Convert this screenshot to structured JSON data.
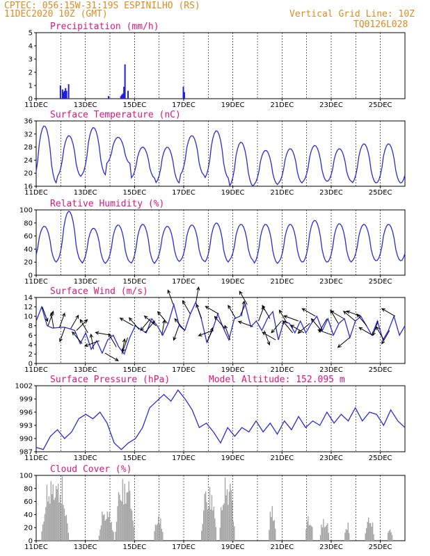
{
  "header": {
    "line1": "CPTEC:  056:15W-31:19S  ESPINILHO (RS)",
    "line2": "11DEC2020 10Z (GMT)",
    "grid_note": "Vertical Grid Line: 10Z",
    "code": "TQ0126L028"
  },
  "day_labels": [
    "11DEC",
    "13DEC",
    "15DEC",
    "17DEC",
    "19DEC",
    "21DEC",
    "23DEC",
    "25DEC"
  ],
  "colors": {
    "header": "#e08a1e",
    "title": "#e0147a",
    "series": "#2929e0",
    "precip": "#1f1fd8",
    "cloud": "#a6a6a6"
  },
  "chart_data": [
    {
      "type": "bar",
      "title": "Precipitation (mm/h)",
      "x_unit": "hours from 11DEC2020 10Z",
      "ylim": [
        0,
        5
      ],
      "yticks": [
        0,
        1,
        2,
        3,
        4,
        5
      ],
      "x": [
        23,
        25,
        26,
        27,
        28,
        29,
        31,
        70,
        82,
        83,
        84,
        85,
        86,
        89,
        143,
        144
      ],
      "values": [
        1.0,
        0.7,
        0.5,
        0.6,
        0.8,
        0.6,
        1.1,
        0.2,
        0.2,
        0.3,
        0.4,
        0.9,
        2.6,
        0.6,
        0.9,
        0.5
      ]
    },
    {
      "type": "line",
      "title": "Surface Temperature (nC)",
      "ylim": [
        16,
        36
      ],
      "yticks": [
        16,
        20,
        24,
        28,
        32,
        36
      ],
      "daily_max": [
        34.5,
        31.5,
        34.0,
        31.0,
        28.0,
        28.0,
        31.5,
        33.0,
        29.5,
        27.0,
        27.5,
        28.5,
        27.5,
        29.0
      ],
      "daily_min": [
        17.0,
        19.0,
        19.5,
        23.0,
        18.5,
        17.0,
        19.5,
        18.5,
        16.0,
        16.5,
        17.0,
        17.5,
        17.5,
        17.0
      ]
    },
    {
      "type": "line",
      "title": "Relative Humidity (%)",
      "ylim": [
        0,
        100
      ],
      "yticks": [
        0,
        20,
        40,
        60,
        80,
        100
      ],
      "daily_max": [
        75,
        98,
        72,
        77,
        78,
        75,
        77,
        80,
        78,
        78,
        78,
        84,
        79,
        78
      ],
      "daily_min": [
        20,
        22,
        18,
        20,
        18,
        21,
        22,
        20,
        23,
        18,
        20,
        20,
        20,
        22
      ]
    },
    {
      "type": "line",
      "title": "Surface Wind (m/s)",
      "ylim": [
        0,
        14
      ],
      "yticks": [
        0,
        2,
        4,
        6,
        8,
        10,
        12,
        14
      ],
      "values": [
        9.0,
        12.0,
        8.0,
        7.5,
        7.6,
        7.7,
        7.4,
        7.0,
        4.2,
        6.5,
        3.0,
        4.8,
        2.2,
        5.0,
        6.0,
        3.5,
        2.0,
        5.5,
        8.0,
        7.2,
        6.5,
        9.5,
        8.0,
        6.0,
        8.5,
        12.5,
        8.0,
        7.0,
        10.5,
        13.0,
        9.5,
        4.5,
        7.0,
        10.5,
        7.5,
        5.0,
        9.5,
        10.0,
        12.5,
        7.8,
        9.0,
        7.0,
        9.5,
        11.0,
        5.0,
        9.0,
        8.5,
        6.5,
        9.0,
        6.5,
        8.5,
        10.0,
        7.0,
        9.5,
        6.0,
        8.5,
        9.5,
        5.5,
        9.0,
        10.0,
        8.0,
        6.0,
        9.0,
        5.0,
        7.0,
        10.0,
        6.0,
        8.0
      ],
      "directions_deg": [
        160,
        20,
        350,
        20,
        200,
        30,
        45,
        320,
        330,
        350,
        250,
        120,
        280,
        330,
        10,
        200,
        300,
        320,
        40,
        220,
        310,
        10,
        320,
        340,
        200,
        320,
        330,
        10,
        340,
        20,
        250,
        300,
        320,
        340,
        330,
        10,
        330,
        290,
        20,
        160,
        330,
        300,
        220,
        330,
        320,
        290,
        300,
        230,
        300,
        320,
        210,
        290,
        330,
        300,
        230,
        310,
        290,
        320,
        300,
        200,
        330,
        210,
        300
      ]
    },
    {
      "type": "line",
      "title": "Surface Pressure (hPa)",
      "model_altitude": "Model Altitude: 152.095 m",
      "ylim": [
        987,
        1002
      ],
      "yticks": [
        987,
        990,
        993,
        996,
        999,
        1002
      ],
      "values": [
        988,
        987.5,
        990.5,
        992,
        990,
        991.5,
        994.5,
        995.5,
        994.5,
        996,
        993.5,
        989,
        987.5,
        989,
        990,
        992.5,
        997,
        998.5,
        1000,
        998.5,
        1001,
        999,
        996.5,
        992.5,
        993.5,
        991.5,
        989,
        992.5,
        990.5,
        992.5,
        991.5,
        994,
        991.5,
        993.5,
        991,
        994,
        992,
        995,
        992.5,
        994,
        993,
        996,
        993.5,
        995.5,
        994,
        997,
        994,
        996,
        995.5,
        993,
        996.5,
        994,
        992.5
      ]
    },
    {
      "type": "bar",
      "title": "Cloud Cover (%)",
      "ylim": [
        0,
        100
      ],
      "yticks": [
        0,
        20,
        40,
        60,
        80,
        100
      ],
      "segments": [
        {
          "start": 4,
          "end": 32,
          "peak": 100
        },
        {
          "start": 60,
          "end": 76,
          "peak": 50
        },
        {
          "start": 76,
          "end": 96,
          "peak": 100
        },
        {
          "start": 114,
          "end": 124,
          "peak": 40
        },
        {
          "start": 160,
          "end": 176,
          "peak": 85
        },
        {
          "start": 178,
          "end": 194,
          "peak": 100
        },
        {
          "start": 226,
          "end": 234,
          "peak": 55
        },
        {
          "start": 262,
          "end": 270,
          "peak": 40
        },
        {
          "start": 276,
          "end": 286,
          "peak": 35
        },
        {
          "start": 300,
          "end": 306,
          "peak": 28
        },
        {
          "start": 320,
          "end": 330,
          "peak": 38
        },
        {
          "start": 342,
          "end": 348,
          "peak": 20
        }
      ]
    }
  ]
}
